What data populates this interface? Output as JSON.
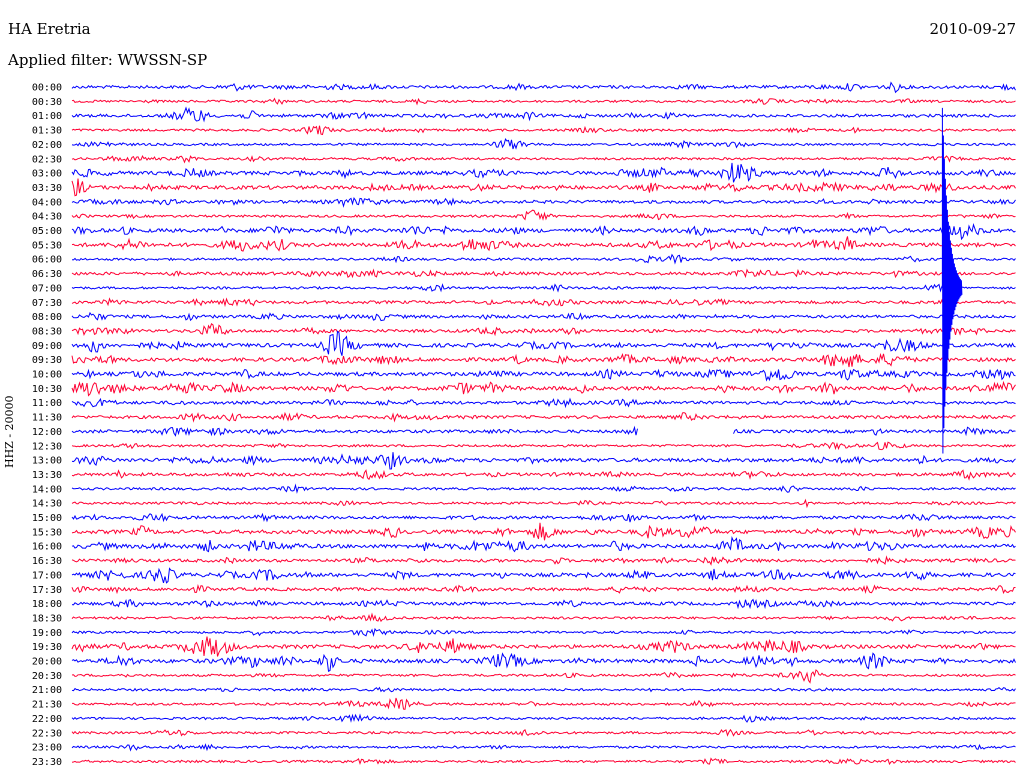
{
  "header": {
    "station": "HA Eretria",
    "date": "2010-09-27",
    "filter": "Applied filter: WWSSN-SP"
  },
  "chart_data": {
    "type": "line",
    "title": "HA Eretria",
    "ylabel": "HHZ - 20000",
    "colors": {
      "blue": "#0000ff",
      "red": "#ff0033"
    },
    "rows": [
      "00:00",
      "00:30",
      "01:00",
      "01:30",
      "02:00",
      "02:30",
      "03:00",
      "03:30",
      "04:00",
      "04:30",
      "05:00",
      "05:30",
      "06:00",
      "06:30",
      "07:00",
      "07:30",
      "08:00",
      "08:30",
      "09:00",
      "09:30",
      "10:00",
      "10:30",
      "11:00",
      "11:30",
      "12:00",
      "12:30",
      "13:00",
      "13:30",
      "14:00",
      "14:30",
      "15:00",
      "15:30",
      "16:00",
      "16:30",
      "17:00",
      "17:30",
      "18:00",
      "18:30",
      "19:00",
      "19:30",
      "20:00",
      "20:30",
      "21:00",
      "21:30",
      "22:00",
      "22:30",
      "23:00",
      "23:30"
    ],
    "activity": [
      2,
      1,
      2,
      1,
      1,
      1,
      3,
      3,
      2,
      1,
      3,
      3,
      1,
      2,
      1,
      2,
      2,
      2,
      3,
      3,
      3,
      3,
      2,
      2,
      2,
      1,
      3,
      2,
      1,
      1,
      2,
      3,
      3,
      2,
      3,
      2,
      2,
      1,
      1,
      3,
      3,
      1,
      1,
      1,
      1,
      1,
      1,
      1
    ],
    "events": [
      {
        "row": 2,
        "pos": 0.13,
        "amp": 1.6
      },
      {
        "row": 3,
        "pos": 0.26,
        "amp": 0.9
      },
      {
        "row": 4,
        "pos": 0.46,
        "amp": 0.7
      },
      {
        "row": 9,
        "pos": 0.49,
        "amp": 1.3
      },
      {
        "row": 17,
        "pos": 0.15,
        "amp": 1.4
      },
      {
        "row": 21,
        "pos": 0.02,
        "amp": 1.8
      },
      {
        "row": 24,
        "pos": 0.6,
        "amp": 0.0
      },
      {
        "row": 31,
        "pos": 0.5,
        "amp": 1.4
      },
      {
        "row": 32,
        "pos": 0.7,
        "amp": 1.5
      },
      {
        "row": 41,
        "pos": 0.78,
        "amp": 1.5
      }
    ],
    "big_event": {
      "row": 14,
      "pos": 0.922,
      "amp": 6.0
    },
    "gap": {
      "row": 24,
      "from": 0.6,
      "to": 0.7
    }
  }
}
